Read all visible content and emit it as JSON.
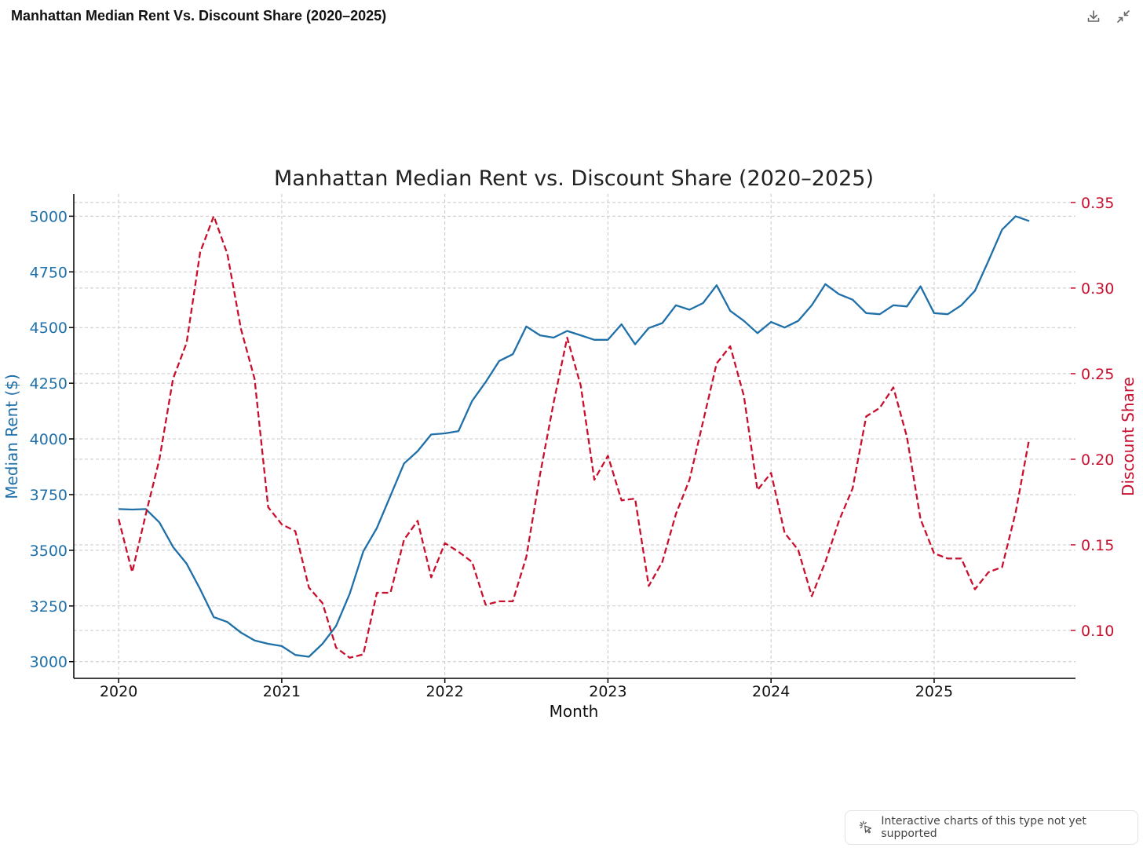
{
  "window": {
    "title": "Manhattan Median Rent Vs. Discount Share (2020–2025)",
    "download_icon": "download-icon",
    "collapse_icon": "collapse-icon"
  },
  "notice": {
    "text": "Interactive charts of this type not yet supported",
    "icon": "cursor-click-icon"
  },
  "colors": {
    "rent": "#1f6fa8",
    "discount": "#c8102e",
    "grid": "#c8c8c8",
    "axis": "#000000"
  },
  "chart_data": {
    "type": "line",
    "title": "Manhattan Median Rent vs. Discount Share (2020–2025)",
    "xlabel": "Month",
    "ylabel_left": "Median Rent ($)",
    "ylabel_right": "Discount Share",
    "x_ticks": [
      "2020",
      "2021",
      "2022",
      "2023",
      "2024",
      "2025"
    ],
    "x_tick_values": [
      0,
      12,
      24,
      36,
      48,
      60
    ],
    "xlim": [
      -3.3,
      70.4
    ],
    "ylim_left": [
      2925,
      5100
    ],
    "yticks_left": [
      3000,
      3250,
      3500,
      3750,
      4000,
      4250,
      4500,
      4750,
      5000
    ],
    "ylim_right": [
      0.072,
      0.355
    ],
    "yticks_right": [
      0.1,
      0.15,
      0.2,
      0.25,
      0.3,
      0.35
    ],
    "grid": true,
    "series": [
      {
        "name": "Median Rent ($)",
        "axis": "left",
        "style": "solid",
        "values": [
          3685,
          3683,
          3685,
          3625,
          3515,
          3440,
          3325,
          3200,
          3178,
          3130,
          3095,
          3080,
          3070,
          3030,
          3022,
          3080,
          3160,
          3305,
          3495,
          3600,
          3745,
          3890,
          3945,
          4020,
          4025,
          4035,
          4170,
          4255,
          4350,
          4380,
          4505,
          4465,
          4455,
          4485,
          4465,
          4445,
          4445,
          4515,
          4425,
          4498,
          4520,
          4600,
          4580,
          4610,
          4690,
          4575,
          4530,
          4475,
          4525,
          4500,
          4530,
          4600,
          4695,
          4650,
          4625,
          4565,
          4560,
          4600,
          4595,
          4685,
          4565,
          4560,
          4600,
          4665,
          4800,
          4940,
          5000,
          4978
        ]
      },
      {
        "name": "Discount Share",
        "axis": "right",
        "style": "dashed",
        "values": [
          0.165,
          0.134,
          0.168,
          0.2,
          0.247,
          0.268,
          0.321,
          0.342,
          0.32,
          0.276,
          0.247,
          0.172,
          0.162,
          0.158,
          0.125,
          0.116,
          0.09,
          0.084,
          0.086,
          0.122,
          0.122,
          0.153,
          0.164,
          0.131,
          0.151,
          0.146,
          0.14,
          0.115,
          0.117,
          0.117,
          0.143,
          0.191,
          0.233,
          0.271,
          0.243,
          0.188,
          0.202,
          0.176,
          0.177,
          0.126,
          0.14,
          0.168,
          0.188,
          0.222,
          0.256,
          0.266,
          0.237,
          0.182,
          0.192,
          0.157,
          0.147,
          0.12,
          0.14,
          0.164,
          0.183,
          0.225,
          0.23,
          0.242,
          0.213,
          0.165,
          0.145,
          0.142,
          0.142,
          0.124,
          0.134,
          0.137,
          0.169,
          0.212
        ]
      }
    ]
  }
}
